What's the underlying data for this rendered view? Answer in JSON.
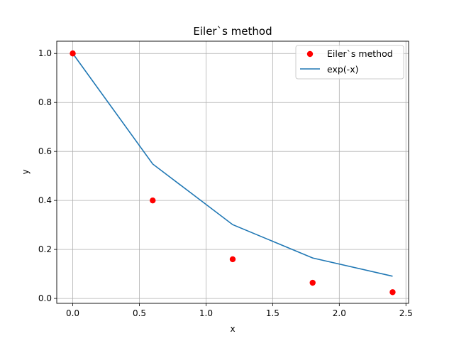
{
  "chart_data": {
    "type": "scatter",
    "title": "Eiler`s method",
    "xlabel": "x",
    "ylabel": "y",
    "xlim": [
      -0.12,
      2.52
    ],
    "ylim": [
      -0.02,
      1.05
    ],
    "xticks": [
      0.0,
      0.5,
      1.0,
      1.5,
      2.0,
      2.5
    ],
    "xtick_labels": [
      "0.0",
      "0.5",
      "1.0",
      "1.5",
      "2.0",
      "2.5"
    ],
    "yticks": [
      0.0,
      0.2,
      0.4,
      0.6,
      0.8,
      1.0
    ],
    "ytick_labels": [
      "0.0",
      "0.2",
      "0.4",
      "0.6",
      "0.8",
      "1.0"
    ],
    "grid": true,
    "legend_position": "top-right",
    "series": [
      {
        "name": "Eiler`s method",
        "kind": "scatter",
        "color": "#ff0000",
        "x": [
          0.0,
          0.6,
          1.2,
          1.8,
          2.4
        ],
        "y": [
          1.0,
          0.4,
          0.16,
          0.064,
          0.0256
        ]
      },
      {
        "name": "exp(-x)",
        "kind": "line",
        "color": "#1f77b4",
        "x": [
          0.0,
          0.6,
          1.2,
          1.8,
          2.4
        ],
        "y": [
          1.0,
          0.5488,
          0.3012,
          0.1653,
          0.0907
        ]
      }
    ]
  }
}
